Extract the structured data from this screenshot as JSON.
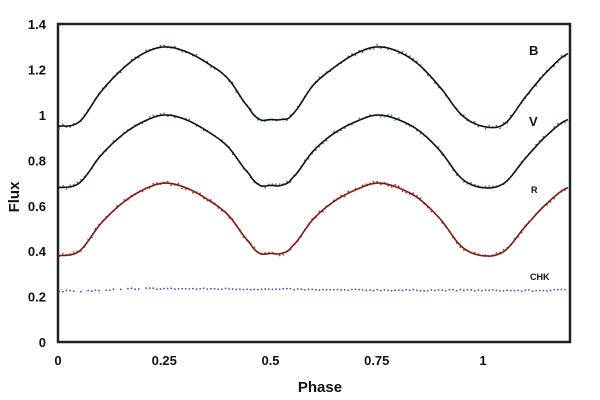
{
  "chart_data": {
    "type": "scatter",
    "title": "",
    "xlabel": "Phase",
    "ylabel": "Flux",
    "xlim": [
      0,
      1.2
    ],
    "ylim": [
      0,
      1.4
    ],
    "grid": false,
    "xticks": [
      "0",
      "0.25",
      "0.5",
      "0.75",
      "1"
    ],
    "xtick_values": [
      0,
      0.25,
      0.5,
      0.75,
      1
    ],
    "yticks": [
      "0",
      "0.2",
      "0.4",
      "0.6",
      "0.8",
      "1",
      "1.2",
      "1.4"
    ],
    "ytick_values": [
      0,
      0.2,
      0.4,
      0.6,
      0.8,
      1,
      1.2,
      1.4
    ],
    "x": [
      0,
      0.05,
      0.1,
      0.15,
      0.2,
      0.25,
      0.3,
      0.35,
      0.4,
      0.45,
      0.475,
      0.5,
      0.525,
      0.55,
      0.6,
      0.65,
      0.7,
      0.75,
      0.8,
      0.85,
      0.9,
      0.95,
      1,
      1.05,
      1.1,
      1.15,
      1.2
    ],
    "series": [
      {
        "name": "B",
        "label": "B",
        "point_color": "#3a6fb5",
        "fit_color": "#111111",
        "values": [
          0.95,
          0.97,
          1.1,
          1.2,
          1.27,
          1.3,
          1.28,
          1.23,
          1.16,
          1.03,
          0.98,
          0.98,
          0.98,
          1.0,
          1.13,
          1.21,
          1.27,
          1.3,
          1.28,
          1.22,
          1.12,
          1.0,
          0.95,
          0.96,
          1.08,
          1.19,
          1.27
        ]
      },
      {
        "name": "V",
        "label": "V",
        "point_color": "#3a9a4a",
        "fit_color": "#111111",
        "values": [
          0.68,
          0.7,
          0.82,
          0.91,
          0.97,
          1.0,
          0.98,
          0.93,
          0.86,
          0.74,
          0.69,
          0.69,
          0.69,
          0.72,
          0.84,
          0.92,
          0.97,
          1.0,
          0.98,
          0.93,
          0.84,
          0.72,
          0.68,
          0.7,
          0.81,
          0.91,
          0.98
        ]
      },
      {
        "name": "R",
        "label": "R",
        "point_color": "#c0392b",
        "fit_color": "#7a1a10",
        "values": [
          0.38,
          0.4,
          0.52,
          0.61,
          0.67,
          0.7,
          0.68,
          0.63,
          0.56,
          0.44,
          0.39,
          0.39,
          0.39,
          0.42,
          0.54,
          0.62,
          0.67,
          0.7,
          0.68,
          0.63,
          0.54,
          0.42,
          0.38,
          0.4,
          0.51,
          0.61,
          0.68
        ]
      },
      {
        "name": "CHK",
        "label": "CHK",
        "point_color": "#6a3d9a",
        "fit_color": null,
        "values": [
          0.225,
          0.225,
          0.228,
          0.232,
          0.235,
          0.235,
          0.234,
          0.234,
          0.234,
          0.233,
          0.233,
          0.232,
          0.232,
          0.232,
          0.23,
          0.229,
          0.229,
          0.229,
          0.228,
          0.228,
          0.228,
          0.228,
          0.227,
          0.227,
          0.226,
          0.227,
          0.23
        ]
      }
    ]
  }
}
